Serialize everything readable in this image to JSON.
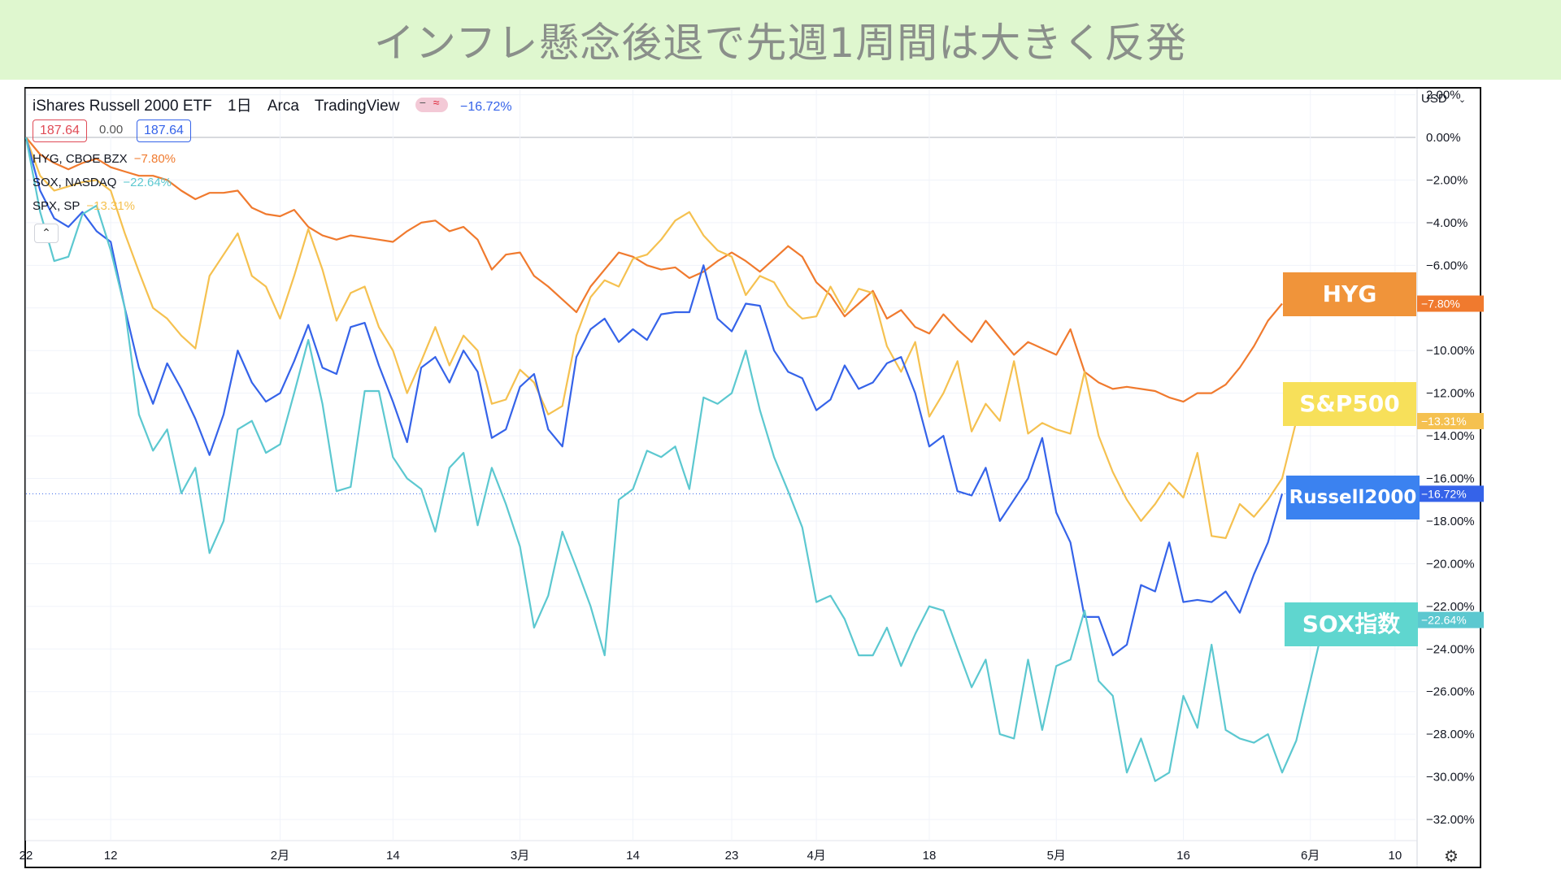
{
  "title": "インフレ懸念後退で先週1周間は大きく反発",
  "header": {
    "symbol": "iShares Russell 2000 ETF",
    "interval": "1日",
    "exchange": "Arca",
    "source": "TradingView",
    "change": "−16.72%",
    "bid": "187.64",
    "spread": "0.00",
    "ask": "187.64",
    "currency": "USD"
  },
  "legend": [
    {
      "name": "HYG, CBOE BZX",
      "value": "−7.80%",
      "color": "#f07a2e"
    },
    {
      "name": "SOX, NASDAQ",
      "value": "−22.64%",
      "color": "#5cc8d0"
    },
    {
      "name": "SPX, SP",
      "value": "−13.31%",
      "color": "#f5c150"
    }
  ],
  "big_labels": [
    {
      "text": "HYG",
      "color": "#f0943a"
    },
    {
      "text": "S&P500",
      "color": "#f7e05a"
    },
    {
      "text": "Russell2000",
      "color": "#3b82f0"
    },
    {
      "text": "SOX指数",
      "color": "#5fd6cf"
    }
  ],
  "price_tags": [
    {
      "text": "−7.80%",
      "color": "#f07a2e",
      "value": -7.8
    },
    {
      "text": "−13.31%",
      "color": "#f5c150",
      "value": -13.31
    },
    {
      "text": "−16.72%",
      "color": "#3563e9",
      "value": -16.72
    },
    {
      "text": "−22.64%",
      "color": "#5cc8d0",
      "value": -22.64
    }
  ],
  "settings_icon": "gear-icon",
  "chart_data": {
    "type": "line",
    "ylim": [
      -33,
      3
    ],
    "y_ticks": [
      2,
      0,
      -2,
      -4,
      -6,
      -8,
      -10,
      -12,
      -14,
      -16,
      -18,
      -20,
      -22,
      -24,
      -26,
      -28,
      -30,
      -32
    ],
    "y_tick_labels": [
      "2.00%",
      "0.00%",
      "−2.00%",
      "−4.00%",
      "−6.00%",
      "",
      "−10.00%",
      "−12.00%",
      "−14.00%",
      "−16.00%",
      "−18.00%",
      "−20.00%",
      "−22.00%",
      "−24.00%",
      "−26.00%",
      "−28.00%",
      "−30.00%",
      "−32.00%"
    ],
    "x_ticks": [
      {
        "label": "22",
        "i": 0
      },
      {
        "label": "12",
        "i": 6
      },
      {
        "label": "2月",
        "i": 18
      },
      {
        "label": "14",
        "i": 26
      },
      {
        "label": "3月",
        "i": 35
      },
      {
        "label": "14",
        "i": 43
      },
      {
        "label": "23",
        "i": 50
      },
      {
        "label": "4月",
        "i": 56
      },
      {
        "label": "18",
        "i": 64
      },
      {
        "label": "5月",
        "i": 73
      },
      {
        "label": "16",
        "i": 82
      },
      {
        "label": "6月",
        "i": 91
      },
      {
        "label": "10",
        "i": 97
      }
    ],
    "x_count": 100,
    "series": [
      {
        "name": "HYG, CBOE BZX",
        "color": "#f07a2e",
        "values": [
          0,
          -0.8,
          -1.2,
          -1.5,
          -1.2,
          -1.0,
          -1.4,
          -1.6,
          -1.8,
          -1.8,
          -2.0,
          -2.5,
          -2.9,
          -2.6,
          -2.6,
          -2.5,
          -3.3,
          -3.6,
          -3.7,
          -3.4,
          -4.2,
          -4.6,
          -4.8,
          -4.6,
          -4.7,
          -4.8,
          -4.9,
          -4.4,
          -4.0,
          -3.9,
          -4.4,
          -4.2,
          -4.8,
          -6.2,
          -5.5,
          -5.4,
          -6.5,
          -7.0,
          -7.6,
          -8.2,
          -7.0,
          -6.2,
          -5.4,
          -5.6,
          -6.0,
          -6.2,
          -6.1,
          -6.6,
          -6.3,
          -5.8,
          -5.4,
          -5.8,
          -6.3,
          -5.7,
          -5.1,
          -5.6,
          -6.8,
          -7.4,
          -8.4,
          -7.8,
          -7.2,
          -8.5,
          -8.1,
          -8.9,
          -9.2,
          -8.3,
          -9.0,
          -9.6,
          -8.6,
          -9.4,
          -10.2,
          -9.6,
          -9.9,
          -10.2,
          -9.0,
          -11.0,
          -11.5,
          -11.8,
          -11.7,
          -11.8,
          -11.9,
          -12.2,
          -12.4,
          -12.0,
          -12.0,
          -11.6,
          -10.8,
          -9.8,
          -8.6,
          -7.8
        ]
      },
      {
        "name": "SPX, SP",
        "color": "#f5c150",
        "values": [
          0,
          -1.8,
          -2.5,
          -2.3,
          -2.1,
          -2.0,
          -2.5,
          -4.5,
          -6.3,
          -8.0,
          -8.5,
          -9.3,
          -9.9,
          -6.5,
          -5.5,
          -4.5,
          -6.5,
          -7.0,
          -8.5,
          -6.5,
          -4.3,
          -6.2,
          -8.6,
          -7.3,
          -7.0,
          -8.9,
          -10.0,
          -12.0,
          -10.5,
          -8.9,
          -10.7,
          -9.3,
          -10.0,
          -12.5,
          -12.3,
          -10.9,
          -11.5,
          -13.0,
          -12.6,
          -9.3,
          -7.5,
          -6.7,
          -7.0,
          -5.7,
          -5.5,
          -4.8,
          -3.9,
          -3.5,
          -4.6,
          -5.3,
          -5.6,
          -7.4,
          -6.5,
          -6.8,
          -7.9,
          -8.5,
          -8.4,
          -7.0,
          -8.2,
          -7.1,
          -7.3,
          -9.8,
          -11.0,
          -9.6,
          -13.1,
          -12.0,
          -10.5,
          -13.8,
          -12.5,
          -13.3,
          -10.5,
          -13.9,
          -13.4,
          -13.7,
          -13.9,
          -11.0,
          -14.0,
          -15.7,
          -17.0,
          -18.0,
          -17.2,
          -16.2,
          -16.9,
          -14.8,
          -18.7,
          -18.8,
          -17.2,
          -17.8,
          -17.0,
          -16.0,
          -13.31
        ]
      },
      {
        "name": "Russell2000",
        "color": "#3563e9",
        "values": [
          0,
          -2.5,
          -3.8,
          -4.2,
          -3.5,
          -4.4,
          -4.9,
          -8.0,
          -10.8,
          -12.5,
          -10.6,
          -11.8,
          -13.2,
          -14.9,
          -13.0,
          -10.0,
          -11.5,
          -12.4,
          -12.0,
          -10.5,
          -8.8,
          -10.8,
          -11.1,
          -8.9,
          -8.7,
          -10.7,
          -12.4,
          -14.3,
          -10.8,
          -10.3,
          -11.5,
          -10.0,
          -11.0,
          -14.1,
          -13.7,
          -11.7,
          -11.1,
          -13.7,
          -14.5,
          -10.3,
          -9.0,
          -8.5,
          -9.6,
          -9.0,
          -9.5,
          -8.3,
          -8.2,
          -8.2,
          -6.0,
          -8.5,
          -9.1,
          -7.8,
          -7.9,
          -10.0,
          -11.0,
          -11.3,
          -12.8,
          -12.3,
          -10.7,
          -11.8,
          -11.5,
          -10.6,
          -10.3,
          -12.0,
          -14.5,
          -14.0,
          -16.6,
          -16.8,
          -15.5,
          -18.0,
          -17.0,
          -16.0,
          -14.1,
          -17.6,
          -19.0,
          -22.5,
          -22.5,
          -24.3,
          -23.8,
          -21.0,
          -21.3,
          -19.0,
          -21.8,
          -21.7,
          -21.8,
          -21.3,
          -22.3,
          -20.5,
          -19.0,
          -16.72
        ]
      },
      {
        "name": "SOX, NASDAQ",
        "color": "#5cc8d0",
        "values": [
          0,
          -3.5,
          -5.8,
          -5.6,
          -3.6,
          -3.2,
          -5.3,
          -8.0,
          -13.0,
          -14.7,
          -13.7,
          -16.7,
          -15.5,
          -19.5,
          -18.0,
          -13.7,
          -13.3,
          -14.8,
          -14.4,
          -12.0,
          -9.5,
          -12.5,
          -16.6,
          -16.4,
          -11.9,
          -11.9,
          -15.0,
          -16.0,
          -16.5,
          -18.5,
          -15.5,
          -14.8,
          -18.2,
          -15.5,
          -17.2,
          -19.2,
          -23.0,
          -21.5,
          -18.5,
          -20.2,
          -22.0,
          -24.3,
          -17.0,
          -16.5,
          -14.7,
          -15.0,
          -14.5,
          -16.5,
          -12.2,
          -12.5,
          -12.0,
          -10.0,
          -12.8,
          -15.0,
          -16.6,
          -18.3,
          -21.8,
          -21.5,
          -22.6,
          -24.3,
          -24.3,
          -23.0,
          -24.8,
          -23.3,
          -22.0,
          -22.2,
          -24.0,
          -25.8,
          -24.5,
          -28.0,
          -28.2,
          -24.5,
          -27.8,
          -24.8,
          -24.5,
          -22.2,
          -25.5,
          -26.2,
          -29.8,
          -28.2,
          -30.2,
          -29.8,
          -26.2,
          -27.7,
          -23.8,
          -27.8,
          -28.2,
          -28.4,
          -28.0,
          -29.8,
          -28.3,
          -25.5,
          -22.64
        ]
      }
    ]
  }
}
